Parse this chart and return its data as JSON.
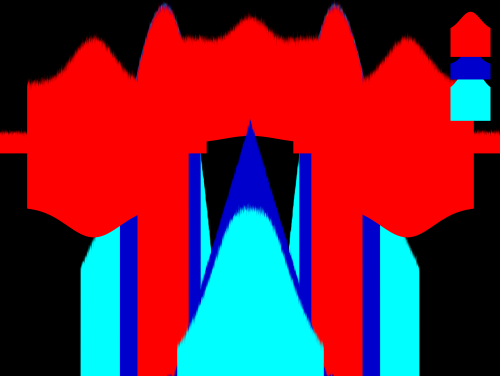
{
  "background_color": "#000000",
  "colors": {
    "red": "#FF0000",
    "blue": "#0000CC",
    "cyan": "#00FFFF"
  },
  "figsize": [
    5.0,
    3.76
  ],
  "dpi": 100
}
